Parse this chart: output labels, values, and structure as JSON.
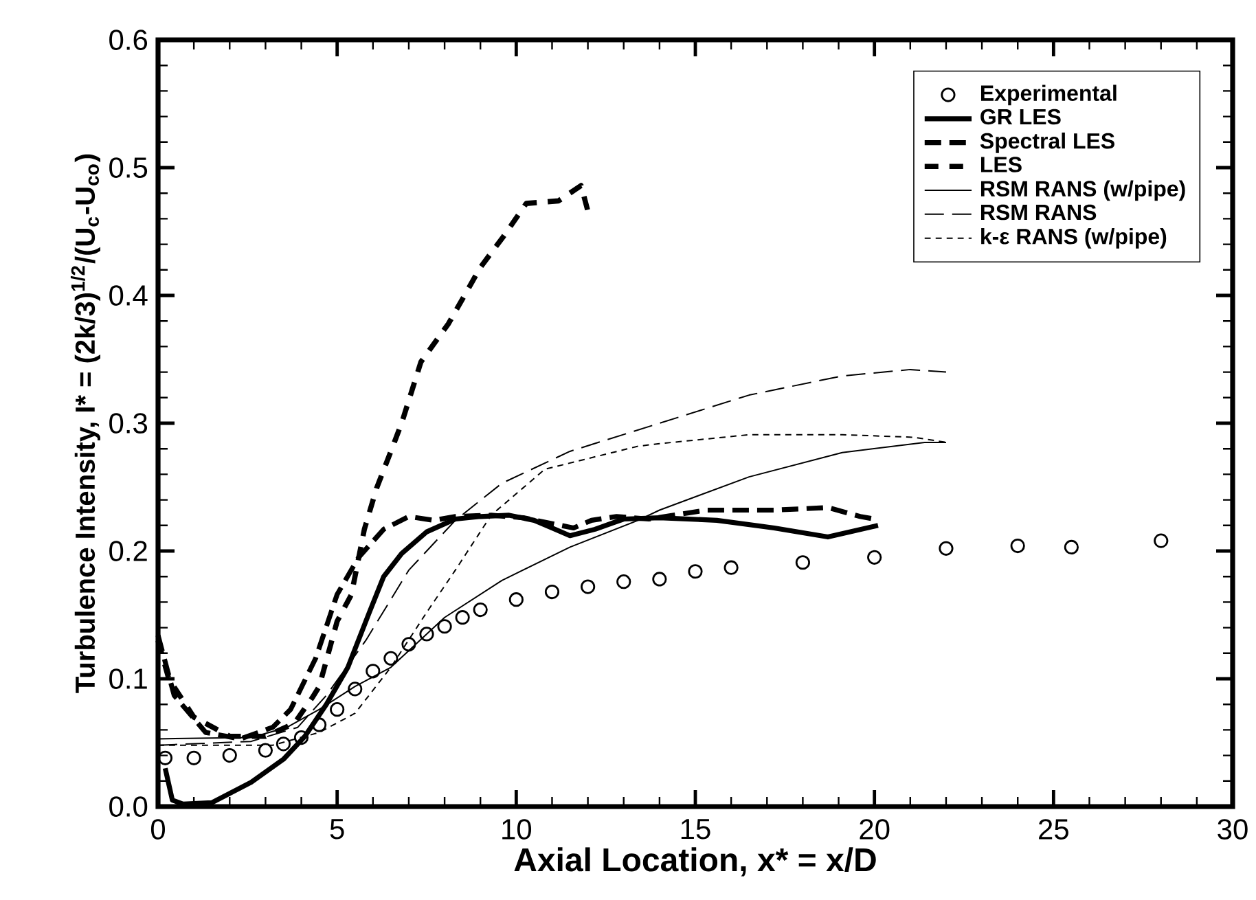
{
  "chart_data": {
    "type": "line",
    "xlabel": "Axial Location,  x* = x/D",
    "ylabel": "Turbulence Intensity,  I* = (2k/3)$^{1/2}$/(U$_{c}$-U$_{co}$)",
    "xlim": [
      0,
      30
    ],
    "xticks": [
      0,
      5,
      10,
      15,
      20,
      25,
      30
    ],
    "ylim": [
      0,
      0.6
    ],
    "yticks": [
      {
        "value": 0,
        "label": "0.0"
      },
      {
        "value": 0.1,
        "label": "0.1"
      },
      {
        "value": 0.2,
        "label": "0.2"
      },
      {
        "value": 0.3,
        "label": "0.3"
      },
      {
        "value": 0.4,
        "label": "0.4"
      },
      {
        "value": 0.5,
        "label": "0.5"
      },
      {
        "value": 0.6,
        "label": "0.6"
      }
    ],
    "legend": "top right",
    "grid": false,
    "series": [
      {
        "name": "Experimental",
        "type": "scatter",
        "marker": "circle",
        "color": "#000000",
        "x": [
          0.2,
          1,
          2,
          3,
          3.5,
          4,
          4.5,
          5,
          5.5,
          6,
          6.5,
          7,
          7.5,
          8,
          8.5,
          9,
          10,
          11,
          12,
          13,
          14,
          15,
          16,
          18,
          20,
          22,
          24,
          25.5,
          28
        ],
        "values": [
          0.038,
          0.038,
          0.04,
          0.044,
          0.049,
          0.054,
          0.064,
          0.076,
          0.092,
          0.106,
          0.116,
          0.127,
          0.135,
          0.141,
          0.148,
          0.154,
          0.162,
          0.168,
          0.172,
          0.176,
          0.178,
          0.184,
          0.187,
          0.191,
          0.195,
          0.202,
          0.204,
          0.203,
          0.208
        ]
      },
      {
        "name": "GR LES",
        "line_style": "solid",
        "color": "#000000",
        "x": [
          0.2,
          0.4,
          0.7,
          1.5,
          2.6,
          3.5,
          4.1,
          4.7,
          5.3,
          5.9,
          6.3,
          6.8,
          7.5,
          8.3,
          9.0,
          9.8,
          10.5,
          11.0,
          11.5,
          12.2,
          13.0,
          14.0,
          15.6,
          17.2,
          18.7,
          20.1
        ],
        "values": [
          0.03,
          0.005,
          0.002,
          0.003,
          0.019,
          0.037,
          0.055,
          0.08,
          0.109,
          0.152,
          0.18,
          0.198,
          0.215,
          0.225,
          0.227,
          0.228,
          0.224,
          0.218,
          0.212,
          0.217,
          0.225,
          0.226,
          0.224,
          0.218,
          0.211,
          0.22
        ]
      },
      {
        "name": "Spectral LES",
        "line_style": "dashed",
        "color": "#000000",
        "x": [
          0,
          0.45,
          1.33,
          2.3,
          3.2,
          3.7,
          4.4,
          5.0,
          5.6,
          6.3,
          7.0,
          7.7,
          8.3,
          9.3,
          10.2,
          11.6,
          12.1,
          12.8,
          13.7,
          15.3,
          17.2,
          18.7,
          19.6,
          20.0
        ],
        "values": [
          0.134,
          0.087,
          0.058,
          0.053,
          0.062,
          0.076,
          0.116,
          0.166,
          0.195,
          0.217,
          0.227,
          0.224,
          0.227,
          0.228,
          0.226,
          0.218,
          0.224,
          0.227,
          0.225,
          0.232,
          0.232,
          0.234,
          0.227,
          0.225
        ]
      },
      {
        "name": "LES",
        "line_style": "dashed",
        "color": "#000000",
        "x": [
          0,
          0.3,
          1,
          2,
          3,
          3.8,
          4.3,
          4.5,
          5.0,
          5.4,
          5.76,
          6.1,
          6.5,
          6.8,
          7.34,
          8.11,
          9.0,
          9.64,
          10.28,
          11.18,
          11.81,
          12.0
        ],
        "values": [
          0.13,
          0.1,
          0.07,
          0.055,
          0.055,
          0.065,
          0.085,
          0.094,
          0.145,
          0.166,
          0.217,
          0.249,
          0.278,
          0.3,
          0.348,
          0.378,
          0.422,
          0.446,
          0.472,
          0.474,
          0.486,
          0.466
        ]
      },
      {
        "name": "RSM RANS (w/pipe)",
        "line_style": "solid",
        "color": "#000000",
        "x": [
          0,
          2.6,
          3.6,
          4.5,
          5.5,
          6.5,
          8.0,
          9.6,
          11.5,
          13.4,
          14.0,
          16.5,
          19.1,
          21.4,
          22.0
        ],
        "values": [
          0.053,
          0.054,
          0.062,
          0.076,
          0.094,
          0.109,
          0.148,
          0.177,
          0.203,
          0.224,
          0.232,
          0.258,
          0.277,
          0.285,
          0.285
        ]
      },
      {
        "name": "RSM RANS",
        "line_style": "dashed",
        "color": "#000000",
        "x": [
          0,
          2.6,
          3.9,
          4.7,
          5.8,
          7.0,
          8.3,
          9.6,
          11.5,
          14.0,
          16.5,
          19.1,
          21.0,
          22.0
        ],
        "values": [
          0.048,
          0.051,
          0.062,
          0.087,
          0.13,
          0.185,
          0.224,
          0.253,
          0.278,
          0.3,
          0.322,
          0.337,
          0.342,
          0.34
        ]
      },
      {
        "name": "k-ε RANS (w/pipe)",
        "line_style": "dotted",
        "color": "#000000",
        "x": [
          0,
          3.2,
          4.5,
          5.5,
          6.5,
          7.5,
          8.3,
          9.3,
          10.8,
          13.4,
          14.0,
          16.5,
          19.1,
          21.1,
          22.0
        ],
        "values": [
          0.048,
          0.048,
          0.058,
          0.073,
          0.109,
          0.152,
          0.185,
          0.228,
          0.264,
          0.282,
          0.284,
          0.291,
          0.291,
          0.289,
          0.285
        ]
      }
    ]
  }
}
